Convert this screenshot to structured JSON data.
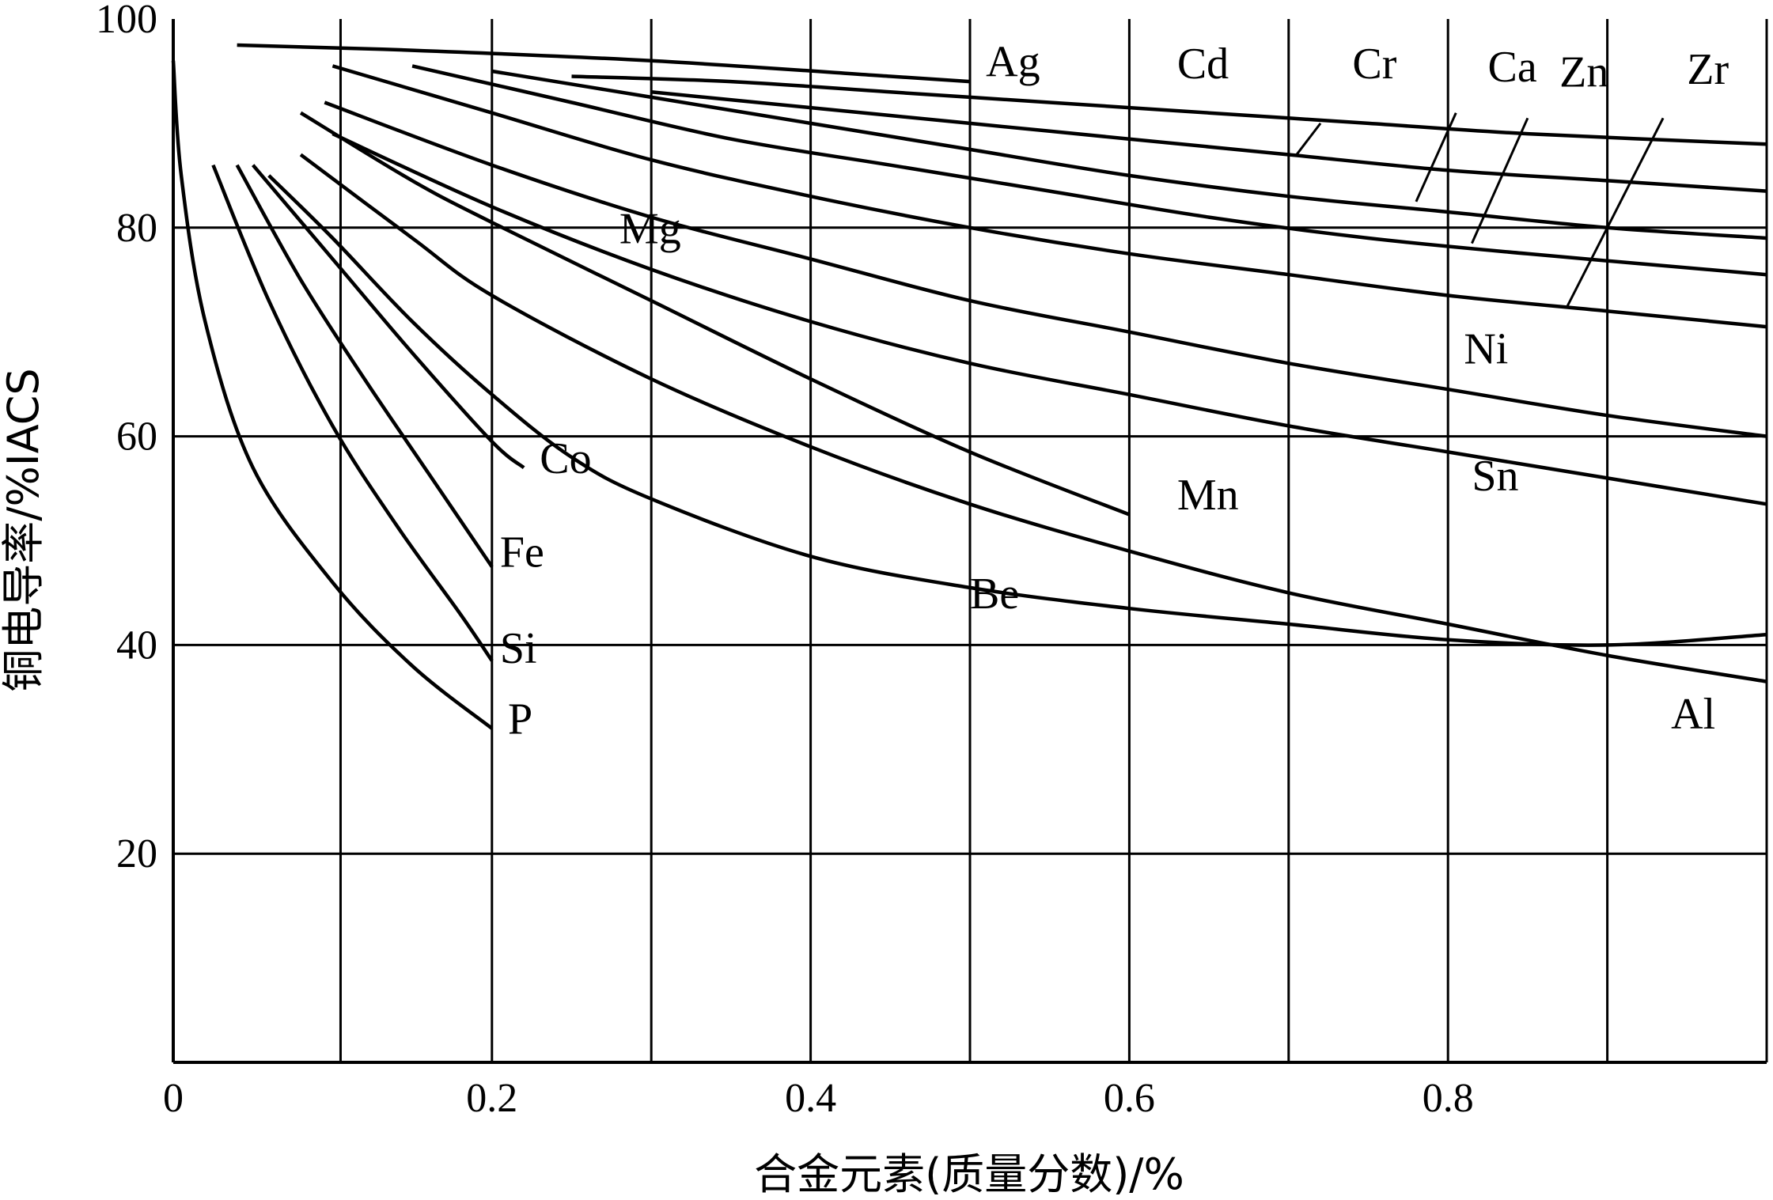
{
  "chart_data": {
    "type": "line",
    "xlabel": "合金元素(质量分数)/%",
    "ylabel": "铜电导率/%IACS",
    "xlim": [
      0,
      1.0
    ],
    "ylim": [
      0,
      100
    ],
    "x_ticks": [
      {
        "value": 0,
        "label": "0"
      },
      {
        "value": 0.2,
        "label": "0.2"
      },
      {
        "value": 0.4,
        "label": "0.4"
      },
      {
        "value": 0.6,
        "label": "0.6"
      },
      {
        "value": 0.8,
        "label": "0.8"
      }
    ],
    "y_ticks": [
      {
        "value": 20,
        "label": "20"
      },
      {
        "value": 40,
        "label": "40"
      },
      {
        "value": 60,
        "label": "60"
      },
      {
        "value": 80,
        "label": "80"
      },
      {
        "value": 100,
        "label": "100"
      }
    ],
    "x_gridlines": [
      0.105,
      0.2,
      0.3,
      0.4,
      0.5,
      0.6,
      0.7,
      0.8,
      0.9
    ],
    "y_gridlines": [
      20,
      40,
      60,
      80
    ],
    "grid": true,
    "legend": "none (curves labeled directly)",
    "series": [
      {
        "name": "Ag",
        "x": [
          0.04,
          0.15,
          0.3,
          0.45,
          0.5
        ],
        "y": [
          97.5,
          97,
          96,
          94.5,
          94
        ]
      },
      {
        "name": "Cd",
        "x": [
          0.25,
          0.35,
          0.45,
          0.55,
          0.65,
          0.75,
          0.85,
          1.0
        ],
        "y": [
          94.5,
          94,
          93,
          92,
          91,
          90,
          89,
          88
        ]
      },
      {
        "name": "Cr",
        "x": [
          0.3,
          0.4,
          0.5,
          0.6,
          0.7,
          0.8,
          0.9,
          1.0
        ],
        "y": [
          93,
          91.5,
          90,
          88.5,
          87,
          85.5,
          84.5,
          83.5
        ]
      },
      {
        "name": "Ca",
        "x": [
          0.2,
          0.3,
          0.4,
          0.5,
          0.6,
          0.7,
          0.8,
          0.9,
          1.0
        ],
        "y": [
          95,
          92.5,
          90,
          87.5,
          85,
          83,
          81.5,
          80,
          79
        ]
      },
      {
        "name": "Zn",
        "x": [
          0.15,
          0.25,
          0.35,
          0.45,
          0.55,
          0.65,
          0.75,
          0.85,
          1.0
        ],
        "y": [
          95.5,
          92,
          88.5,
          86,
          83.5,
          81,
          79,
          77.5,
          75.5
        ]
      },
      {
        "name": "Zr",
        "x": [
          0.1,
          0.2,
          0.3,
          0.4,
          0.5,
          0.6,
          0.7,
          0.8,
          0.9,
          1.0
        ],
        "y": [
          95.5,
          91,
          86.5,
          83,
          80,
          77.5,
          75.5,
          73.5,
          72,
          70.5
        ]
      },
      {
        "name": "Ni",
        "x": [
          0.095,
          0.2,
          0.3,
          0.4,
          0.5,
          0.6,
          0.7,
          0.8,
          0.9,
          1.0
        ],
        "y": [
          92,
          86,
          81,
          77,
          73,
          70,
          67,
          64.5,
          62,
          60
        ]
      },
      {
        "name": "Sn",
        "x": [
          0.1,
          0.2,
          0.3,
          0.4,
          0.5,
          0.6,
          0.7,
          0.8,
          0.9,
          1.0
        ],
        "y": [
          89,
          82,
          76,
          71,
          67,
          64,
          61,
          58.5,
          56,
          53.5
        ]
      },
      {
        "name": "Mg",
        "x": [
          0.08,
          0.15,
          0.2,
          0.3,
          0.4,
          0.5,
          0.6
        ],
        "y": [
          91,
          84.5,
          80.5,
          73,
          65.5,
          58.5,
          52.5
        ]
      },
      {
        "name": "Al",
        "x": [
          0.08,
          0.15,
          0.2,
          0.3,
          0.4,
          0.5,
          0.6,
          0.7,
          0.8,
          0.9,
          1.0
        ],
        "y": [
          87,
          79,
          73.5,
          65.5,
          59,
          53.5,
          49,
          45,
          42,
          39,
          36.5
        ]
      },
      {
        "name": "Be",
        "x": [
          0.06,
          0.1,
          0.15,
          0.2,
          0.25,
          0.3,
          0.4,
          0.5,
          0.6,
          0.7,
          0.8,
          0.9,
          1.0
        ],
        "y": [
          85,
          79,
          71,
          64,
          58,
          54,
          48.5,
          45.5,
          43.5,
          42,
          40.5,
          40,
          41
        ]
      },
      {
        "name": "Co",
        "x": [
          0.05,
          0.1,
          0.15,
          0.2,
          0.22
        ],
        "y": [
          86,
          77,
          68,
          59.5,
          57
        ]
      },
      {
        "name": "Fe",
        "x": [
          0.04,
          0.08,
          0.12,
          0.16,
          0.2
        ],
        "y": [
          86,
          75,
          65.5,
          56.5,
          47.5
        ]
      },
      {
        "name": "Si",
        "x": [
          0.025,
          0.06,
          0.1,
          0.14,
          0.18,
          0.2
        ],
        "y": [
          86,
          73,
          61,
          51.5,
          43,
          38.5
        ]
      },
      {
        "name": "P",
        "x": [
          0,
          0.005,
          0.02,
          0.05,
          0.1,
          0.15,
          0.2
        ],
        "y": [
          96,
          85,
          71,
          57,
          46,
          38,
          32
        ]
      }
    ],
    "labels": [
      {
        "text": "Ag",
        "x": 0.51,
        "y": 94.5
      },
      {
        "text": "Cd",
        "x": 0.63,
        "y": 94.3
      },
      {
        "text": "Cr",
        "x": 0.74,
        "y": 94.3
      },
      {
        "text": "Ca",
        "x": 0.825,
        "y": 94
      },
      {
        "text": "Zn",
        "x": 0.87,
        "y": 93.5
      },
      {
        "text": "Zr",
        "x": 0.95,
        "y": 93.8
      },
      {
        "text": "Mg",
        "x": 0.28,
        "y": 78.5
      },
      {
        "text": "Ni",
        "x": 0.81,
        "y": 67
      },
      {
        "text": "Sn",
        "x": 0.815,
        "y": 54.8
      },
      {
        "text": "Co",
        "x": 0.23,
        "y": 56.5
      },
      {
        "text": "Mn",
        "x": 0.63,
        "y": 53
      },
      {
        "text": "Fe",
        "x": 0.205,
        "y": 47.5
      },
      {
        "text": "Be",
        "x": 0.5,
        "y": 43.5
      },
      {
        "text": "Si",
        "x": 0.205,
        "y": 38.3
      },
      {
        "text": "P",
        "x": 0.21,
        "y": 31.5
      },
      {
        "text": "Al",
        "x": 0.94,
        "y": 32
      }
    ],
    "leaders": [
      {
        "x1": 0.705,
        "y1": 87,
        "x2": 0.72,
        "y2": 90
      },
      {
        "x1": 0.78,
        "y1": 82.5,
        "x2": 0.805,
        "y2": 91
      },
      {
        "x1": 0.815,
        "y1": 78.5,
        "x2": 0.85,
        "y2": 90.5
      },
      {
        "x1": 0.875,
        "y1": 72.5,
        "x2": 0.935,
        "y2": 90.5
      }
    ]
  }
}
